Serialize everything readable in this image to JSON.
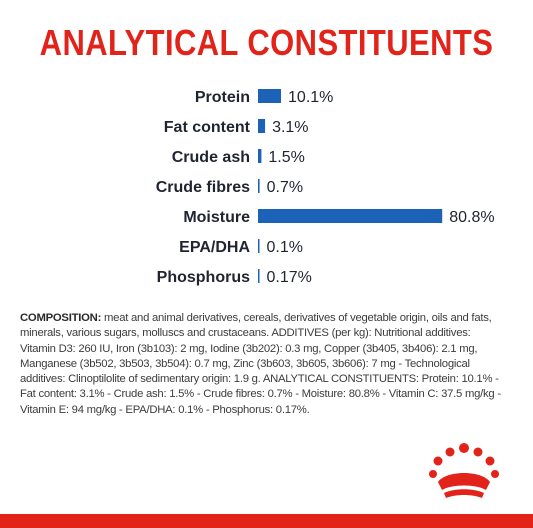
{
  "title": "ANALYTICAL CONSTITUENTS",
  "chart_data": {
    "type": "bar",
    "orientation": "horizontal",
    "title": "ANALYTICAL CONSTITUENTS",
    "categories": [
      "Protein",
      "Fat content",
      "Crude ash",
      "Crude fibres",
      "Moisture",
      "EPA/DHA",
      "Phosphorus"
    ],
    "values": [
      10.1,
      3.1,
      1.5,
      0.7,
      80.8,
      0.1,
      0.17
    ],
    "value_labels": [
      "10.1%",
      "3.1%",
      "1.5%",
      "0.7%",
      "80.8%",
      "0.1%",
      "0.17%"
    ],
    "unit": "%",
    "xlim": [
      0,
      100
    ],
    "grid": false,
    "legend": "none",
    "bar_color": "#1c63b7"
  },
  "composition": {
    "label": "COMPOSITION:",
    "text": " meat and animal derivatives, cereals, derivatives of vegetable origin, oils and fats, minerals, various sugars, molluscs and crustaceans. ADDITIVES (per kg): Nutritional additives: Vitamin D3: 260 IU, Iron (3b103): 2 mg, Iodine (3b202): 0.3 mg, Copper (3b405, 3b406): 2.1 mg, Manganese (3b502, 3b503, 3b504): 0.7 mg, Zinc (3b603, 3b605, 3b606): 7 mg - Technological additives: Clinoptilolite of sedimentary origin: 1.9 g. ANALYTICAL CONSTITUENTS: Protein: 10.1% - Fat content: 3.1% - Crude ash: 1.5% - Crude fibres: 0.7% - Moisture: 80.8% - Vitamin C: 37.5 mg/kg - Vitamin E: 94 mg/kg - EPA/DHA: 0.1% - Phosphorus: 0.17%."
  },
  "brand_icon": "royal-canin-crown-icon",
  "colors": {
    "accent_red": "#e2231a",
    "bar_blue": "#1c63b7",
    "label_dark": "#1f2430"
  }
}
